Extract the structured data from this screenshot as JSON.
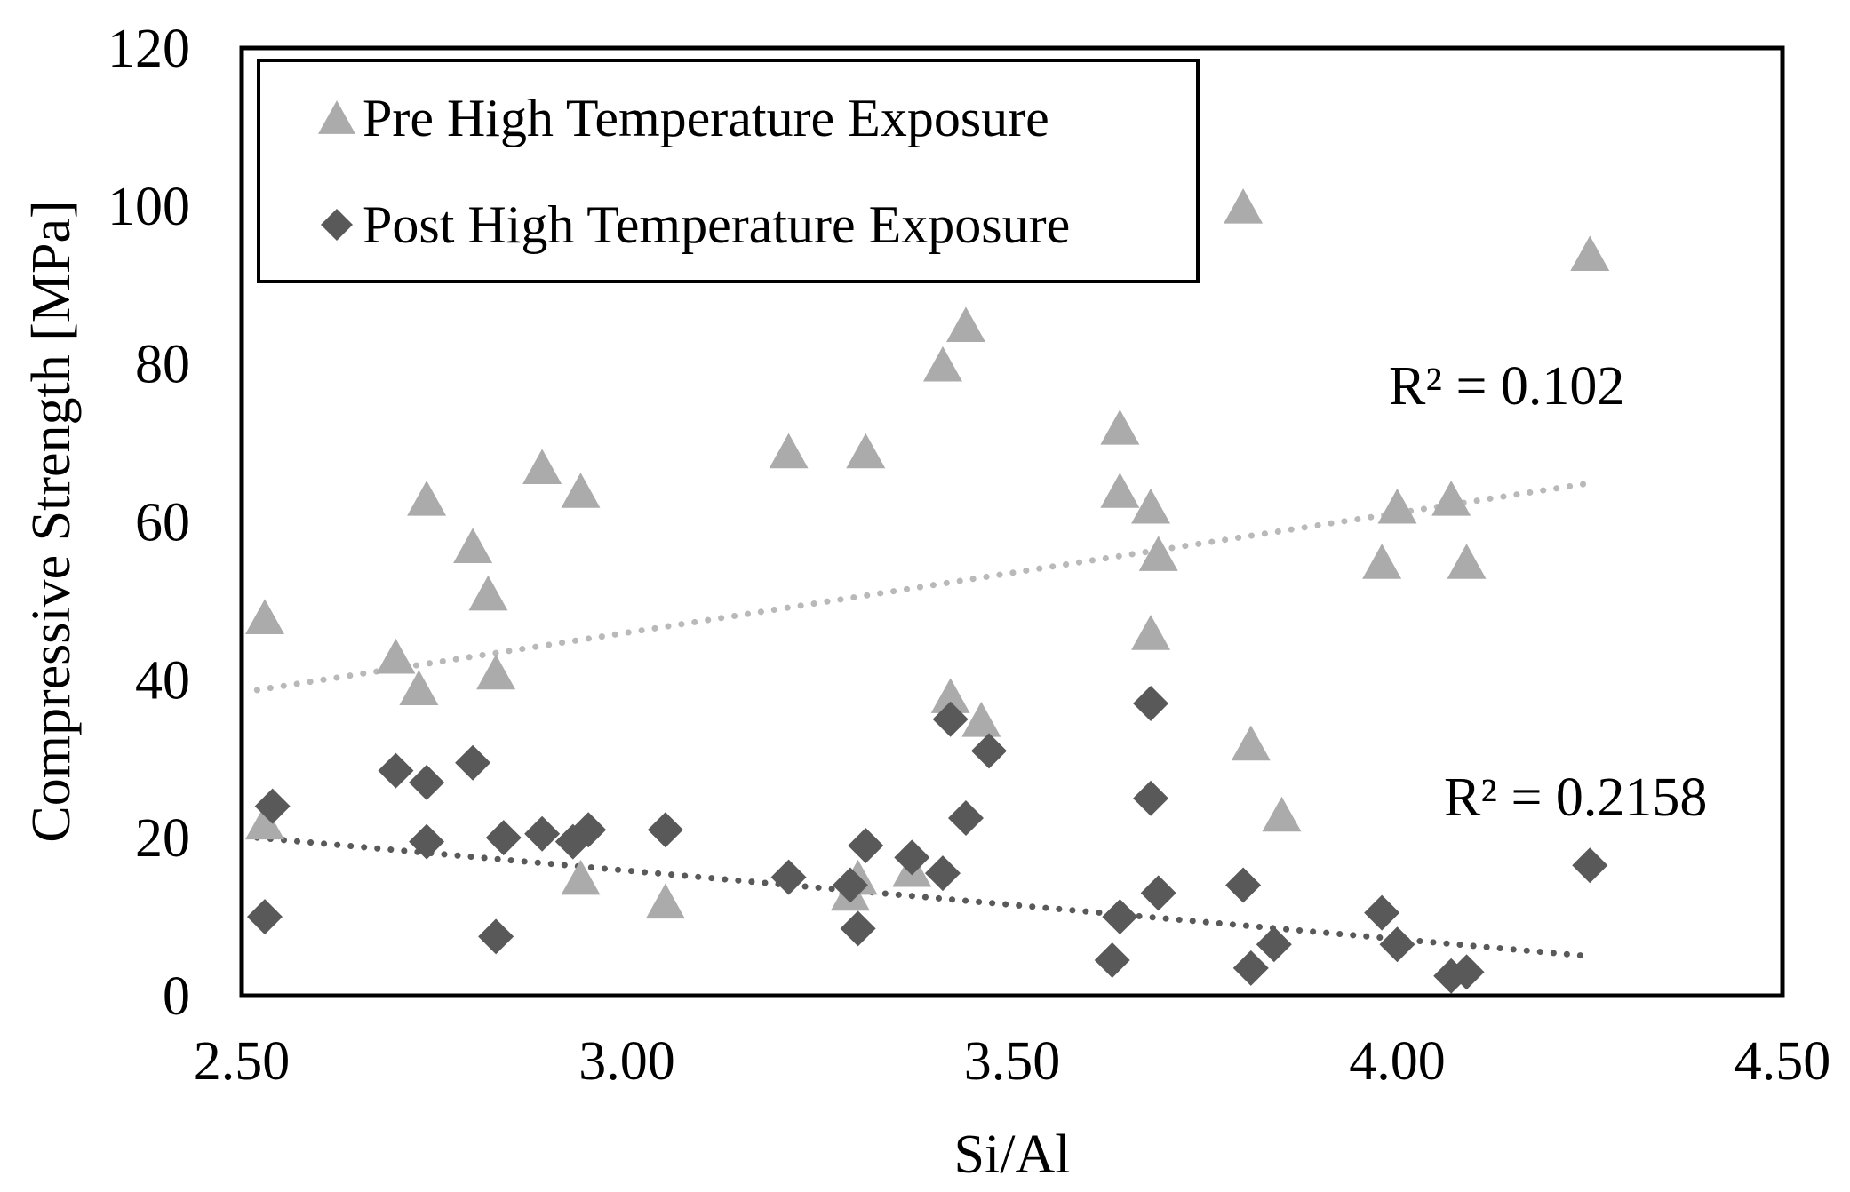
{
  "chart_data": {
    "type": "scatter",
    "title": "",
    "xlabel": "Si/Al",
    "ylabel": "Compressive Strength [MPa]",
    "xlim": [
      2.5,
      4.5
    ],
    "ylim": [
      0,
      120
    ],
    "xticks": [
      "2.50",
      "3.00",
      "3.50",
      "4.00",
      "4.50"
    ],
    "xtick_values": [
      2.5,
      3.0,
      3.5,
      4.0,
      4.5
    ],
    "yticks": [
      "0",
      "20",
      "40",
      "60",
      "80",
      "100",
      "120"
    ],
    "ytick_values": [
      0,
      20,
      40,
      60,
      80,
      100,
      120
    ],
    "grid": false,
    "legend_position": "top-left",
    "series": [
      {
        "name": "Pre High Temperature Exposure",
        "marker": "triangle",
        "color": "#ababab",
        "trendline_color": "#b9b9b9",
        "r2_label": "R² = 0.102",
        "trendline": {
          "x": [
            2.52,
            4.25
          ],
          "y": [
            38.7,
            64.9
          ]
        },
        "points": [
          [
            2.53,
            48
          ],
          [
            2.53,
            22
          ],
          [
            2.7,
            43
          ],
          [
            2.73,
            39
          ],
          [
            2.74,
            63
          ],
          [
            2.8,
            57
          ],
          [
            2.82,
            51
          ],
          [
            2.83,
            41
          ],
          [
            2.89,
            67
          ],
          [
            2.94,
            15
          ],
          [
            2.94,
            64
          ],
          [
            3.05,
            12
          ],
          [
            3.21,
            69
          ],
          [
            3.29,
            13
          ],
          [
            3.31,
            69
          ],
          [
            3.3,
            15
          ],
          [
            3.37,
            16
          ],
          [
            3.41,
            80
          ],
          [
            3.42,
            38
          ],
          [
            3.44,
            85
          ],
          [
            3.46,
            35
          ],
          [
            3.64,
            72
          ],
          [
            3.64,
            64
          ],
          [
            3.68,
            62
          ],
          [
            3.68,
            46
          ],
          [
            3.69,
            56
          ],
          [
            3.8,
            100
          ],
          [
            3.81,
            32
          ],
          [
            3.85,
            23
          ],
          [
            3.98,
            55
          ],
          [
            4.0,
            62
          ],
          [
            4.07,
            63
          ],
          [
            4.09,
            55
          ],
          [
            4.25,
            94
          ]
        ]
      },
      {
        "name": "Post High Temperature Exposure",
        "marker": "diamond",
        "color": "#595959",
        "trendline_color": "#595959",
        "r2_label": "R² = 0.2158",
        "trendline": {
          "x": [
            2.52,
            4.25
          ],
          "y": [
            20.0,
            5.0
          ]
        },
        "points": [
          [
            2.53,
            10
          ],
          [
            2.54,
            24
          ],
          [
            2.7,
            28.5
          ],
          [
            2.74,
            27
          ],
          [
            2.74,
            19.5
          ],
          [
            2.8,
            29.5
          ],
          [
            2.83,
            7.5
          ],
          [
            2.84,
            20
          ],
          [
            2.89,
            20.5
          ],
          [
            2.93,
            19.5
          ],
          [
            2.95,
            21
          ],
          [
            3.05,
            21
          ],
          [
            3.21,
            15
          ],
          [
            3.29,
            14
          ],
          [
            3.3,
            8.5
          ],
          [
            3.31,
            19
          ],
          [
            3.37,
            17.5
          ],
          [
            3.41,
            15.5
          ],
          [
            3.42,
            35
          ],
          [
            3.44,
            22.5
          ],
          [
            3.47,
            31
          ],
          [
            3.63,
            4.5
          ],
          [
            3.64,
            10
          ],
          [
            3.68,
            37
          ],
          [
            3.68,
            25
          ],
          [
            3.69,
            13
          ],
          [
            3.8,
            14
          ],
          [
            3.81,
            3.5
          ],
          [
            3.84,
            6.5
          ],
          [
            3.98,
            10.5
          ],
          [
            4.0,
            6.5
          ],
          [
            4.07,
            2.5
          ],
          [
            4.09,
            3
          ],
          [
            4.25,
            16.5
          ]
        ]
      }
    ]
  }
}
